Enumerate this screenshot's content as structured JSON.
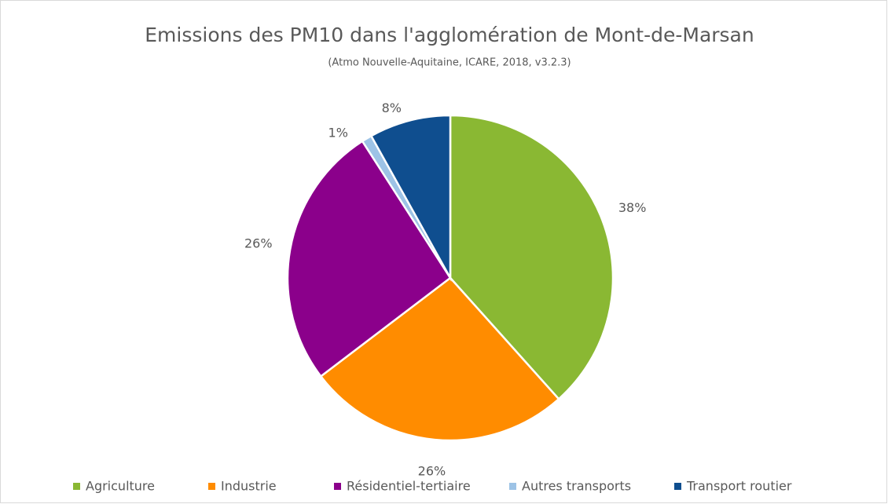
{
  "chart_data": {
    "type": "pie",
    "title": "Emissions des PM10 dans l'agglomération de Mont-de-Marsan",
    "subtitle": "(Atmo Nouvelle-Aquitaine, ICARE, 2018, v3.2.3)",
    "categories": [
      "Agriculture",
      "Industrie",
      "Résidentiel-tertiaire",
      "Autres transports",
      "Transport routier"
    ],
    "values": [
      38,
      26,
      26,
      1,
      8
    ],
    "value_labels": [
      "38%",
      "26%",
      "26%",
      "1%",
      "8%"
    ],
    "colors": [
      "#8ab833",
      "#ff8c00",
      "#8b008b",
      "#9dc3e6",
      "#0f4e8f"
    ],
    "legend": "bottom"
  }
}
